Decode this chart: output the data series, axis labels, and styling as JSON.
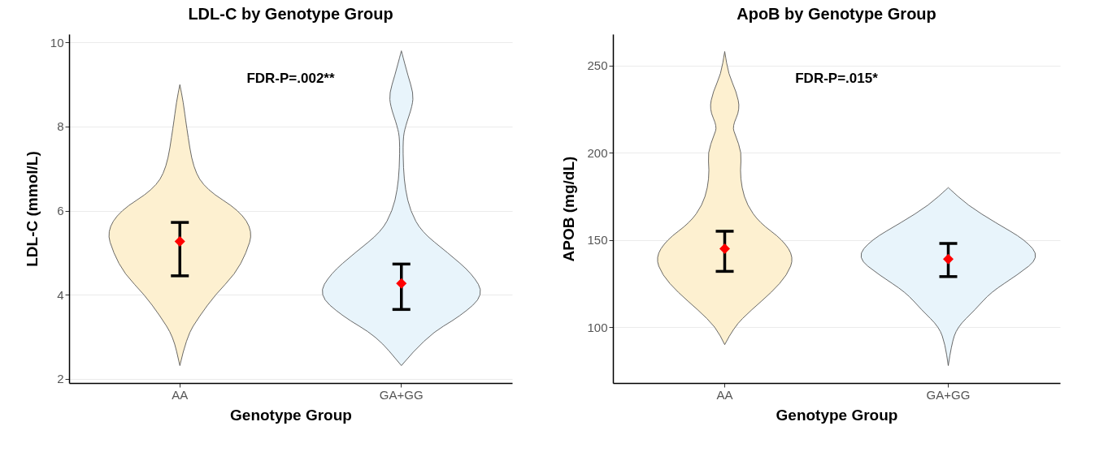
{
  "chart_data": [
    {
      "type": "scatter",
      "title": "LDL-C by Genotype Group",
      "xlabel": "Genotype Group",
      "ylabel": "LDL-C (mmol/L)",
      "categories": [
        "AA",
        "GA+GG"
      ],
      "marker": "diamond",
      "grid": "y",
      "ylim": [
        1.9,
        10.2
      ],
      "yticks": [
        2,
        4,
        6,
        8,
        10
      ],
      "annotations": [
        "FDR-P=.002**"
      ],
      "series": [
        {
          "color": "#ff0000",
          "values": [
            5.27,
            4.27
          ],
          "errors": [
            [
              4.45,
              5.72
            ],
            [
              3.65,
              4.73
            ]
          ]
        }
      ]
    },
    {
      "type": "scatter",
      "title": "ApoB by Genotype Group",
      "xlabel": "Genotype Group",
      "ylabel": "APOB (mg/dL)",
      "categories": [
        "AA",
        "GA+GG"
      ],
      "marker": "diamond",
      "grid": "y",
      "ylim": [
        68,
        268
      ],
      "yticks": [
        100,
        150,
        200,
        250
      ],
      "annotations": [
        "FDR-P=.015*"
      ],
      "series": [
        {
          "color": "#ff0000",
          "values": [
            145,
            139
          ],
          "errors": [
            [
              132,
              155
            ],
            [
              129,
              148
            ]
          ]
        }
      ]
    }
  ]
}
